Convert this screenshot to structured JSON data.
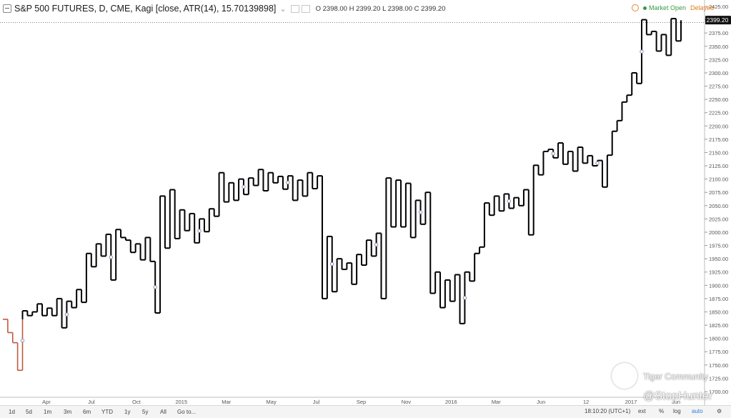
{
  "header": {
    "title": "S&P 500 FUTURES, D, CME, Kagi [close, ATR(14), 15.70139898]",
    "ohlc": "O 2398.00  H 2399.20  L 2398.00  C 2399.20"
  },
  "market": {
    "status": "Market Open",
    "delay": "Delayed",
    "status_color": "#3a9a44",
    "delay_color": "#e07a1a"
  },
  "colors": {
    "up": "#000000",
    "down": "#c0583e",
    "price_label_bg": "#111111",
    "price_label_fg": "#ffffff"
  },
  "chart_data": {
    "type": "line",
    "style": "kagi",
    "ylim": [
      1700,
      2425
    ],
    "y_ticks": [
      1700,
      1725,
      1750,
      1775,
      1800,
      1825,
      1850,
      1875,
      1900,
      1925,
      1950,
      1975,
      2000,
      2025,
      2050,
      2075,
      2100,
      2125,
      2150,
      2175,
      2200,
      2225,
      2250,
      2275,
      2300,
      2325,
      2350,
      2375,
      2400,
      2425
    ],
    "x_ticks": [
      "Apr",
      "Jul",
      "Oct",
      "2015",
      "Mar",
      "May",
      "Jul",
      "Sep",
      "Nov",
      "2016",
      "Mar",
      "Jun",
      "12",
      "2017",
      "Jun"
    ],
    "last_price": "2399.20",
    "kagi_turns": [
      1836,
      1811,
      1792,
      1740,
      1852,
      1843,
      1850,
      1865,
      1843,
      1857,
      1843,
      1875,
      1820,
      1870,
      1858,
      1892,
      1868,
      1960,
      1935,
      1978,
      1955,
      1996,
      1910,
      2005,
      1990,
      1985,
      1962,
      1978,
      1948,
      1990,
      1945,
      1848,
      2068,
      1970,
      2080,
      1988,
      2042,
      2003,
      2035,
      1980,
      2025,
      2001,
      2044,
      2030,
      2112,
      2057,
      2093,
      2060,
      2100,
      2071,
      2102,
      2088,
      2118,
      2078,
      2112,
      2093,
      2105,
      2081,
      2106,
      2060,
      2098,
      2068,
      2112,
      2082,
      2106,
      1875,
      1992,
      1888,
      1950,
      1930,
      1942,
      1902,
      1958,
      1938,
      1985,
      1955,
      1998,
      1875,
      2102,
      2010,
      2098,
      2010,
      2092,
      1990,
      2060,
      2015,
      2075,
      1885,
      1925,
      1858,
      1910,
      1870,
      1920,
      1828,
      1925,
      1908,
      1960,
      1972,
      2055,
      2032,
      2068,
      2040,
      2072,
      2045,
      2065,
      2050,
      2080,
      1995,
      2126,
      2108,
      2152,
      2156,
      2140,
      2168,
      2128,
      2152,
      2115,
      2160,
      2130,
      2144,
      2125,
      2135,
      2085,
      2145,
      2190,
      2210,
      2245,
      2258,
      2300,
      2280,
      2400,
      2372,
      2378,
      2341,
      2372,
      2333,
      2402,
      2360,
      2399
    ]
  },
  "toolbar": {
    "ranges": [
      "1d",
      "5d",
      "1m",
      "3m",
      "6m",
      "YTD",
      "1y",
      "5y",
      "All",
      "Go to..."
    ],
    "time": "18:10:20 (UTC+1)",
    "ext": "ext",
    "pct": "%",
    "log": "log",
    "auto": "auto"
  },
  "watermark": {
    "line1": "Tiger Community",
    "line2": "@StopHunter"
  }
}
